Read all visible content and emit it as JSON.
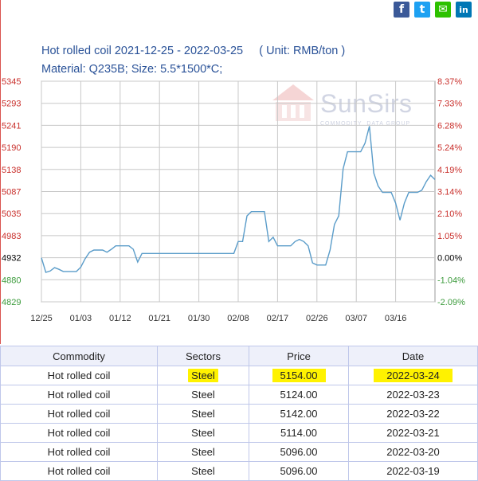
{
  "share": [
    {
      "name": "facebook",
      "glyph": "f"
    },
    {
      "name": "twitter",
      "glyph": "t"
    },
    {
      "name": "wechat",
      "glyph": "✉"
    },
    {
      "name": "linkedin",
      "glyph": "in"
    }
  ],
  "chart": {
    "title": "Hot rolled coil 2021-12-25 - 2022-03-25     ( Unit: RMB/ton )",
    "subtitle": "Material: Q235B; Size: 5.5*1500*C;",
    "watermark": "SunSirs",
    "watermark_tag": "COMMODITY  DATA GROUP"
  },
  "chart_data": {
    "type": "line",
    "title": "Hot rolled coil 2021-12-25 - 2022-03-25",
    "unit": "( Unit: RMB/ton )",
    "x_tick_labels": [
      "12/25",
      "01/03",
      "01/12",
      "01/21",
      "01/30",
      "02/08",
      "02/17",
      "02/26",
      "03/07",
      "03/16"
    ],
    "y_left_ticks": [
      "5345",
      "5293",
      "5241",
      "5190",
      "5138",
      "5087",
      "5035",
      "4983",
      "4932",
      "4880",
      "4829"
    ],
    "y_right_ticks": [
      "8.37%",
      "7.33%",
      "6.28%",
      "5.24%",
      "4.19%",
      "3.14%",
      "2.10%",
      "1.05%",
      "0.00%",
      "-1.04%",
      "-2.09%"
    ],
    "ylim": [
      4829,
      5345
    ],
    "baseline": 4932,
    "grid": true,
    "colors": {
      "line": "#5a9cc9",
      "grid": "#c8c8c8",
      "up": "#c9302c",
      "down": "#3c9b3c",
      "base": "#000000"
    },
    "series": [
      {
        "x": [
          "12/25",
          "12/26",
          "12/27",
          "12/28",
          "12/29",
          "12/30",
          "12/31",
          "01/01",
          "01/02",
          "01/03",
          "01/04",
          "01/05",
          "01/06",
          "01/07",
          "01/08",
          "01/09",
          "01/10",
          "01/11",
          "01/12",
          "01/13",
          "01/14",
          "01/15",
          "01/16",
          "01/17",
          "01/18",
          "01/19",
          "01/20",
          "01/21",
          "01/22",
          "01/23",
          "01/24",
          "01/25",
          "01/26",
          "01/27",
          "01/28",
          "01/29",
          "01/30",
          "01/31",
          "02/01",
          "02/02",
          "02/03",
          "02/04",
          "02/05",
          "02/06",
          "02/07",
          "02/08",
          "02/09",
          "02/10",
          "02/11",
          "02/12",
          "02/13",
          "02/14",
          "02/15",
          "02/16",
          "02/17",
          "02/18",
          "02/19",
          "02/20",
          "02/21",
          "02/22",
          "02/23",
          "02/24",
          "02/25",
          "02/26",
          "02/27",
          "02/28",
          "03/01",
          "03/02",
          "03/03",
          "03/04",
          "03/05",
          "03/06",
          "03/07",
          "03/08",
          "03/09",
          "03/10",
          "03/11",
          "03/12",
          "03/13",
          "03/14",
          "03/15",
          "03/16",
          "03/17",
          "03/18",
          "03/19",
          "03/20",
          "03/21",
          "03/22",
          "03/23",
          "03/24",
          "03/25"
        ],
        "values": [
          4932,
          4898,
          4901,
          4909,
          4905,
          4900,
          4900,
          4900,
          4900,
          4910,
          4930,
          4945,
          4950,
          4950,
          4950,
          4945,
          4952,
          4960,
          4960,
          4960,
          4960,
          4952,
          4922,
          4942,
          4942,
          4942,
          4942,
          4942,
          4942,
          4942,
          4942,
          4942,
          4942,
          4942,
          4942,
          4942,
          4942,
          4942,
          4942,
          4942,
          4942,
          4942,
          4942,
          4942,
          4942,
          4970,
          4970,
          5030,
          5040,
          5040,
          5040,
          5040,
          4970,
          4980,
          4960,
          4960,
          4960,
          4960,
          4970,
          4975,
          4970,
          4960,
          4920,
          4915,
          4915,
          4915,
          4950,
          5010,
          5030,
          5140,
          5180,
          5180,
          5180,
          5180,
          5200,
          5240,
          5130,
          5100,
          5085,
          5085,
          5085,
          5060,
          5020,
          5060,
          5085,
          5085,
          5085,
          5090,
          5110,
          5125,
          5115
        ]
      }
    ]
  },
  "table": {
    "headers": [
      "Commodity",
      "Sectors",
      "Price",
      "Date"
    ],
    "rows": [
      {
        "commodity": "Hot rolled coil",
        "sector": "Steel",
        "price": "5154.00",
        "date": "2022-03-24"
      },
      {
        "commodity": "Hot rolled coil",
        "sector": "Steel",
        "price": "5124.00",
        "date": "2022-03-23"
      },
      {
        "commodity": "Hot rolled coil",
        "sector": "Steel",
        "price": "5142.00",
        "date": "2022-03-22"
      },
      {
        "commodity": "Hot rolled coil",
        "sector": "Steel",
        "price": "5114.00",
        "date": "2022-03-21"
      },
      {
        "commodity": "Hot rolled coil",
        "sector": "Steel",
        "price": "5096.00",
        "date": "2022-03-20"
      },
      {
        "commodity": "Hot rolled coil",
        "sector": "Steel",
        "price": "5096.00",
        "date": "2022-03-19"
      }
    ]
  }
}
